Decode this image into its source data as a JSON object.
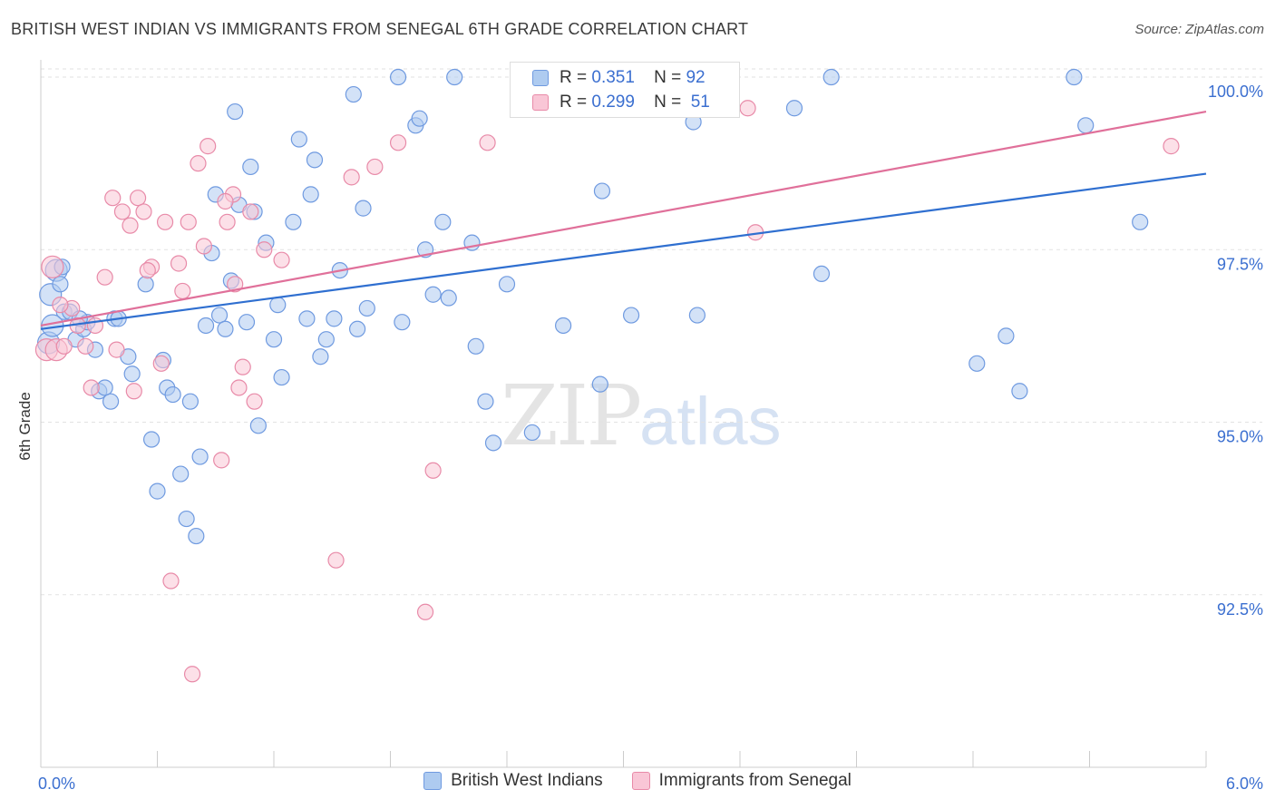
{
  "title": "BRITISH WEST INDIAN VS IMMIGRANTS FROM SENEGAL 6TH GRADE CORRELATION CHART",
  "source": "Source: ZipAtlas.com",
  "watermark": {
    "zip": "ZIP",
    "atlas": "atlas"
  },
  "legend": {
    "rows": [
      {
        "r_label": "R =",
        "r_value": "0.351",
        "n_label": "N =",
        "n_value": "92",
        "color": "#aecbf0",
        "border": "#6f9ae0"
      },
      {
        "r_label": "R =",
        "r_value": "0.299",
        "n_label": "N =",
        "n_value": "51",
        "color": "#f9c6d6",
        "border": "#e88aa8"
      }
    ]
  },
  "chart_data": {
    "type": "scatter",
    "xlabel": "",
    "ylabel": "6th Grade",
    "x_tick_labels": [
      "0.0%",
      "6.0%"
    ],
    "y_tick_labels": [
      "100.0%",
      "97.5%",
      "95.0%",
      "92.5%"
    ],
    "y_tick_values": [
      100.0,
      97.5,
      95.0,
      92.5
    ],
    "xlim": [
      0,
      6
    ],
    "ylim": [
      90.0,
      100.25
    ],
    "grid": true,
    "series": [
      {
        "name": "British West Indians",
        "color": "#aecbf0",
        "stroke": "#6f9ae0",
        "line_color": "#2f6fd0",
        "trend": {
          "x": [
            0,
            6
          ],
          "y": [
            96.35,
            98.6
          ]
        },
        "points": [
          [
            0.04,
            96.15
          ],
          [
            0.05,
            96.85
          ],
          [
            0.08,
            97.2
          ],
          [
            0.1,
            97.0
          ],
          [
            0.12,
            96.6
          ],
          [
            0.15,
            96.6
          ],
          [
            0.18,
            96.2
          ],
          [
            0.22,
            96.35
          ],
          [
            0.24,
            96.45
          ],
          [
            0.28,
            96.05
          ],
          [
            0.3,
            95.45
          ],
          [
            0.33,
            95.5
          ],
          [
            0.36,
            95.3
          ],
          [
            0.38,
            96.5
          ],
          [
            0.4,
            96.5
          ],
          [
            0.45,
            95.95
          ],
          [
            0.47,
            95.7
          ],
          [
            0.54,
            97.0
          ],
          [
            0.57,
            94.75
          ],
          [
            0.6,
            94.0
          ],
          [
            0.63,
            95.9
          ],
          [
            0.65,
            95.5
          ],
          [
            0.68,
            95.4
          ],
          [
            0.72,
            94.25
          ],
          [
            0.75,
            93.6
          ],
          [
            0.77,
            95.3
          ],
          [
            0.8,
            93.35
          ],
          [
            0.82,
            94.5
          ],
          [
            0.85,
            96.4
          ],
          [
            0.88,
            97.45
          ],
          [
            0.9,
            98.3
          ],
          [
            0.92,
            96.55
          ],
          [
            0.95,
            96.35
          ],
          [
            0.98,
            97.05
          ],
          [
            1.0,
            99.5
          ],
          [
            1.02,
            98.15
          ],
          [
            1.06,
            96.45
          ],
          [
            1.08,
            98.7
          ],
          [
            1.1,
            98.05
          ],
          [
            1.12,
            94.95
          ],
          [
            1.16,
            97.6
          ],
          [
            1.2,
            96.2
          ],
          [
            1.22,
            96.7
          ],
          [
            1.24,
            95.65
          ],
          [
            1.3,
            97.9
          ],
          [
            1.33,
            99.1
          ],
          [
            1.37,
            96.5
          ],
          [
            1.39,
            98.3
          ],
          [
            1.41,
            98.8
          ],
          [
            1.44,
            95.95
          ],
          [
            1.47,
            96.2
          ],
          [
            1.51,
            96.5
          ],
          [
            1.54,
            97.2
          ],
          [
            1.61,
            99.75
          ],
          [
            1.63,
            96.35
          ],
          [
            1.66,
            98.1
          ],
          [
            1.68,
            96.65
          ],
          [
            1.84,
            100.0
          ],
          [
            1.86,
            96.45
          ],
          [
            1.93,
            99.3
          ],
          [
            1.95,
            99.4
          ],
          [
            1.98,
            97.5
          ],
          [
            2.02,
            96.85
          ],
          [
            2.07,
            97.9
          ],
          [
            2.1,
            96.8
          ],
          [
            2.13,
            100.0
          ],
          [
            2.22,
            97.6
          ],
          [
            2.24,
            96.1
          ],
          [
            2.29,
            95.3
          ],
          [
            2.33,
            94.7
          ],
          [
            2.4,
            97.0
          ],
          [
            2.53,
            94.85
          ],
          [
            2.62,
            99.75
          ],
          [
            2.69,
            96.4
          ],
          [
            2.88,
            95.55
          ],
          [
            2.89,
            98.35
          ],
          [
            3.04,
            96.55
          ],
          [
            3.36,
            99.35
          ],
          [
            3.38,
            96.55
          ],
          [
            3.88,
            99.55
          ],
          [
            4.02,
            97.15
          ],
          [
            4.07,
            100.0
          ],
          [
            4.82,
            95.85
          ],
          [
            4.97,
            96.25
          ],
          [
            5.04,
            95.45
          ],
          [
            5.32,
            100.0
          ],
          [
            5.38,
            99.3
          ],
          [
            5.66,
            97.9
          ],
          [
            2.67,
            99.8
          ],
          [
            0.11,
            97.25
          ],
          [
            0.06,
            96.4
          ],
          [
            0.2,
            96.5
          ]
        ]
      },
      {
        "name": "Immigrants from Senegal",
        "color": "#f9c6d6",
        "stroke": "#e88aa8",
        "line_color": "#e0709a",
        "trend": {
          "x": [
            0,
            6
          ],
          "y": [
            96.4,
            99.5
          ]
        },
        "points": [
          [
            0.03,
            96.05
          ],
          [
            0.06,
            97.25
          ],
          [
            0.08,
            96.05
          ],
          [
            0.12,
            96.1
          ],
          [
            0.16,
            96.65
          ],
          [
            0.19,
            96.4
          ],
          [
            0.23,
            96.1
          ],
          [
            0.26,
            95.5
          ],
          [
            0.33,
            97.1
          ],
          [
            0.37,
            98.25
          ],
          [
            0.42,
            98.05
          ],
          [
            0.46,
            97.85
          ],
          [
            0.5,
            98.25
          ],
          [
            0.53,
            98.05
          ],
          [
            0.57,
            97.25
          ],
          [
            0.62,
            95.85
          ],
          [
            0.64,
            97.9
          ],
          [
            0.67,
            92.7
          ],
          [
            0.71,
            97.3
          ],
          [
            0.73,
            96.9
          ],
          [
            0.76,
            97.9
          ],
          [
            0.78,
            91.35
          ],
          [
            0.81,
            98.75
          ],
          [
            0.84,
            97.55
          ],
          [
            0.86,
            99.0
          ],
          [
            0.93,
            94.45
          ],
          [
            0.96,
            97.9
          ],
          [
            0.99,
            98.3
          ],
          [
            1.02,
            95.5
          ],
          [
            1.04,
            95.8
          ],
          [
            1.08,
            98.05
          ],
          [
            1.1,
            95.3
          ],
          [
            1.15,
            97.5
          ],
          [
            1.24,
            97.35
          ],
          [
            1.52,
            93.0
          ],
          [
            1.6,
            98.55
          ],
          [
            1.72,
            98.7
          ],
          [
            1.84,
            99.05
          ],
          [
            1.98,
            92.25
          ],
          [
            2.02,
            94.3
          ],
          [
            2.3,
            99.05
          ],
          [
            3.64,
            99.55
          ],
          [
            3.68,
            97.75
          ],
          [
            5.82,
            99.0
          ],
          [
            0.1,
            96.7
          ],
          [
            0.28,
            96.4
          ],
          [
            0.39,
            96.05
          ],
          [
            0.55,
            97.2
          ],
          [
            0.48,
            95.45
          ],
          [
            0.95,
            98.2
          ],
          [
            1.0,
            97.0
          ]
        ]
      }
    ]
  },
  "bottom_legend": [
    "British West Indians",
    "Immigrants from Senegal"
  ]
}
